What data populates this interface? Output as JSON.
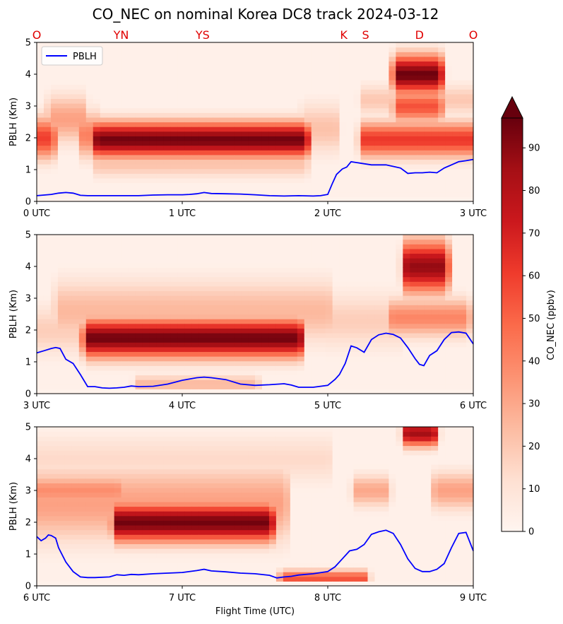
{
  "chart_data": {
    "type": "heatmap",
    "title": "CO_NEC on nominal Korea DC8 track 2024-03-12",
    "xlabel": "Flight Time (UTC)",
    "ylabel": "PBLH (Km)",
    "colorbar_label": "CO_NEC (ppbv)",
    "colorbar_ticks": [
      "0",
      "10",
      "20",
      "30",
      "40",
      "50",
      "60",
      "70",
      "80",
      "90"
    ],
    "colorbar_range": [
      0,
      97
    ],
    "colormap": "Reds",
    "ylim": [
      0,
      5
    ],
    "yticks": [
      "0",
      "1",
      "2",
      "3",
      "4",
      "5"
    ],
    "legend": {
      "label": "PBLH",
      "color": "#0000ff",
      "position": "top-left"
    },
    "location_color": "#e00000",
    "location_labels": [
      {
        "label": "O",
        "time": 0.0
      },
      {
        "label": "YN",
        "time": 0.58
      },
      {
        "label": "YS",
        "time": 1.14
      },
      {
        "label": "K",
        "time": 2.11
      },
      {
        "label": "S",
        "time": 2.26
      },
      {
        "label": "D",
        "time": 2.63
      },
      {
        "label": "O",
        "time": 3.0
      }
    ],
    "panels": [
      {
        "xlim": [
          0,
          3
        ],
        "xticks": [
          "0 UTC",
          "1 UTC",
          "2 UTC",
          "3 UTC"
        ],
        "pblh": {
          "name": "PBLH",
          "time": [
            0.0,
            0.05,
            0.1,
            0.15,
            0.2,
            0.25,
            0.3,
            0.35,
            0.4,
            0.5,
            0.6,
            0.7,
            0.8,
            0.9,
            1.0,
            1.05,
            1.1,
            1.15,
            1.2,
            1.3,
            1.4,
            1.5,
            1.6,
            1.7,
            1.8,
            1.9,
            1.95,
            2.0,
            2.03,
            2.06,
            2.1,
            2.13,
            2.16,
            2.2,
            2.3,
            2.4,
            2.45,
            2.5,
            2.55,
            2.6,
            2.65,
            2.7,
            2.75,
            2.8,
            2.85,
            2.9,
            2.95,
            3.0
          ],
          "km": [
            0.18,
            0.2,
            0.22,
            0.26,
            0.28,
            0.26,
            0.19,
            0.18,
            0.18,
            0.18,
            0.18,
            0.18,
            0.2,
            0.21,
            0.21,
            0.22,
            0.24,
            0.28,
            0.25,
            0.24,
            0.23,
            0.21,
            0.18,
            0.17,
            0.18,
            0.17,
            0.18,
            0.22,
            0.55,
            0.85,
            1.02,
            1.08,
            1.25,
            1.22,
            1.15,
            1.15,
            1.1,
            1.05,
            0.88,
            0.9,
            0.9,
            0.92,
            0.9,
            1.05,
            1.15,
            1.25,
            1.28,
            1.32
          ]
        },
        "blobs": [
          {
            "t0": 0.0,
            "t1": 0.1,
            "z": 2.0,
            "dz": 0.65,
            "a": 60
          },
          {
            "t0": 0.1,
            "t1": 0.32,
            "z": 2.6,
            "dz": 0.75,
            "a": 32
          },
          {
            "t0": 0.32,
            "t1": 0.42,
            "z": 2.1,
            "dz": 0.7,
            "a": 42
          },
          {
            "t0": 0.42,
            "t1": 1.84,
            "z": 1.95,
            "dz": 0.55,
            "a": 95
          },
          {
            "t0": 0.42,
            "t1": 1.84,
            "z": 1.2,
            "dz": 0.45,
            "a": 22
          },
          {
            "t0": 1.84,
            "t1": 2.05,
            "z": 2.3,
            "dz": 0.8,
            "a": 22
          },
          {
            "t0": 2.25,
            "t1": 3.0,
            "z": 1.95,
            "dz": 0.55,
            "a": 62
          },
          {
            "t0": 2.25,
            "t1": 3.0,
            "z": 3.2,
            "dz": 0.5,
            "a": 20
          },
          {
            "t0": 2.48,
            "t1": 2.76,
            "z": 4.0,
            "dz": 0.6,
            "a": 96
          },
          {
            "t0": 2.48,
            "t1": 2.76,
            "z": 3.0,
            "dz": 0.5,
            "a": 55
          }
        ]
      },
      {
        "xlim": [
          3,
          6
        ],
        "xticks": [
          "3 UTC",
          "4 UTC",
          "5 UTC",
          "6 UTC"
        ],
        "pblh": {
          "name": "PBLH",
          "time": [
            3.0,
            3.05,
            3.1,
            3.13,
            3.16,
            3.2,
            3.25,
            3.3,
            3.35,
            3.4,
            3.45,
            3.5,
            3.55,
            3.6,
            3.65,
            3.7,
            3.8,
            3.9,
            4.0,
            4.1,
            4.15,
            4.2,
            4.3,
            4.4,
            4.5,
            4.6,
            4.7,
            4.75,
            4.8,
            4.9,
            5.0,
            5.05,
            5.08,
            5.12,
            5.16,
            5.2,
            5.25,
            5.3,
            5.35,
            5.4,
            5.45,
            5.5,
            5.55,
            5.6,
            5.63,
            5.66,
            5.7,
            5.75,
            5.8,
            5.85,
            5.9,
            5.95,
            6.0
          ],
          "km": [
            1.28,
            1.35,
            1.42,
            1.45,
            1.42,
            1.08,
            0.95,
            0.6,
            0.22,
            0.22,
            0.18,
            0.17,
            0.18,
            0.2,
            0.24,
            0.22,
            0.23,
            0.3,
            0.42,
            0.5,
            0.52,
            0.5,
            0.44,
            0.3,
            0.26,
            0.28,
            0.31,
            0.27,
            0.2,
            0.2,
            0.26,
            0.45,
            0.6,
            0.95,
            1.5,
            1.44,
            1.3,
            1.7,
            1.85,
            1.9,
            1.86,
            1.75,
            1.45,
            1.1,
            0.92,
            0.88,
            1.2,
            1.35,
            1.7,
            1.92,
            1.94,
            1.9,
            1.56
          ]
        },
        "blobs": [
          {
            "t0": 3.35,
            "t1": 4.8,
            "z": 1.75,
            "dz": 0.6,
            "a": 95
          },
          {
            "t0": 3.15,
            "t1": 5.0,
            "z": 2.6,
            "dz": 1.0,
            "a": 25
          },
          {
            "t0": 3.0,
            "t1": 3.35,
            "z": 2.0,
            "dz": 0.8,
            "a": 18
          },
          {
            "t0": 5.0,
            "t1": 5.5,
            "z": 2.3,
            "dz": 0.9,
            "a": 18
          },
          {
            "t0": 5.55,
            "t1": 5.8,
            "z": 4.0,
            "dz": 0.8,
            "a": 88
          },
          {
            "t0": 5.45,
            "t1": 5.95,
            "z": 2.4,
            "dz": 0.6,
            "a": 40
          },
          {
            "t0": 3.7,
            "t1": 4.5,
            "z": 0.3,
            "dz": 0.3,
            "a": 25
          }
        ]
      },
      {
        "xlim": [
          6,
          9
        ],
        "xticks": [
          "6 UTC",
          "7 UTC",
          "8 UTC",
          "9 UTC"
        ],
        "pblh": {
          "name": "PBLH",
          "time": [
            6.0,
            6.03,
            6.06,
            6.08,
            6.1,
            6.13,
            6.15,
            6.2,
            6.25,
            6.3,
            6.35,
            6.4,
            6.5,
            6.55,
            6.6,
            6.65,
            6.7,
            6.8,
            6.9,
            7.0,
            7.1,
            7.15,
            7.2,
            7.3,
            7.4,
            7.5,
            7.6,
            7.65,
            7.7,
            7.75,
            7.8,
            7.9,
            8.0,
            8.05,
            8.1,
            8.15,
            8.2,
            8.25,
            8.3,
            8.35,
            8.4,
            8.45,
            8.5,
            8.55,
            8.6,
            8.65,
            8.7,
            8.75,
            8.8,
            8.85,
            8.9,
            8.95,
            9.0
          ],
          "km": [
            1.55,
            1.42,
            1.5,
            1.6,
            1.58,
            1.5,
            1.2,
            0.75,
            0.45,
            0.28,
            0.26,
            0.26,
            0.28,
            0.35,
            0.33,
            0.36,
            0.35,
            0.38,
            0.4,
            0.42,
            0.48,
            0.52,
            0.47,
            0.44,
            0.4,
            0.38,
            0.33,
            0.25,
            0.28,
            0.3,
            0.34,
            0.38,
            0.45,
            0.6,
            0.85,
            1.1,
            1.15,
            1.3,
            1.62,
            1.7,
            1.75,
            1.65,
            1.3,
            0.85,
            0.55,
            0.45,
            0.45,
            0.52,
            0.7,
            1.2,
            1.65,
            1.68,
            1.1
          ]
        },
        "blobs": [
          {
            "t0": 6.55,
            "t1": 7.6,
            "z": 2.0,
            "dz": 0.6,
            "a": 95
          },
          {
            "t0": 6.0,
            "t1": 7.7,
            "z": 2.6,
            "dz": 1.2,
            "a": 32
          },
          {
            "t0": 6.0,
            "t1": 6.55,
            "z": 3.0,
            "dz": 0.5,
            "a": 38
          },
          {
            "t0": 7.7,
            "t1": 8.25,
            "z": 0.25,
            "dz": 0.25,
            "a": 55
          },
          {
            "t0": 8.2,
            "t1": 8.4,
            "z": 3.0,
            "dz": 0.5,
            "a": 30
          },
          {
            "t0": 8.55,
            "t1": 8.72,
            "z": 4.8,
            "dz": 0.4,
            "a": 85
          },
          {
            "t0": 8.75,
            "t1": 9.0,
            "z": 3.0,
            "dz": 0.6,
            "a": 32
          },
          {
            "t0": 6.0,
            "t1": 8.0,
            "z": 4.0,
            "dz": 0.8,
            "a": 14
          }
        ]
      }
    ]
  }
}
